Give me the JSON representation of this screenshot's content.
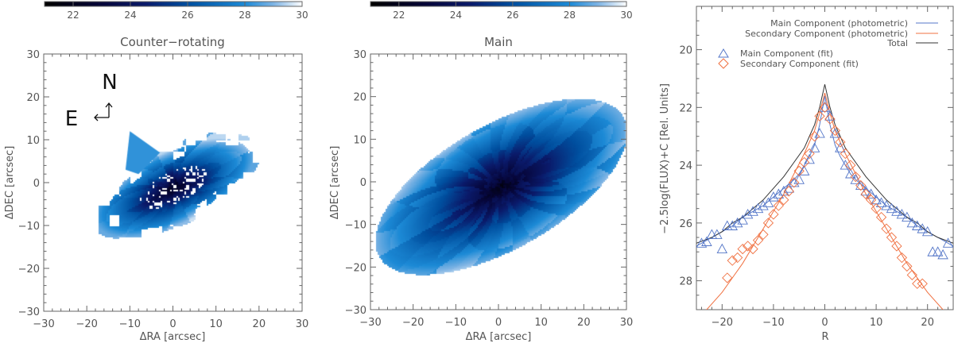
{
  "chart_data": [
    {
      "type": "heatmap",
      "title": "Counter−rotating",
      "xlabel": "ΔRA [arcsec]",
      "ylabel": "ΔDEC [arcsec]",
      "xlim": [
        -30,
        30
      ],
      "ylim": [
        -30,
        30
      ],
      "xticks": [
        "−30",
        "−20",
        "−10",
        "0",
        "10",
        "20",
        "30"
      ],
      "yticks": [
        "−30",
        "−20",
        "−10",
        "0",
        "10",
        "20",
        "30"
      ],
      "colorbar": {
        "range": [
          21,
          30
        ],
        "ticks": [
          "22",
          "24",
          "26",
          "28",
          "30"
        ],
        "colors": [
          "#000000",
          "#06063a",
          "#0a1a6a",
          "#004f9f",
          "#1c8ad6",
          "#7fb4e4",
          "#ffffff"
        ]
      },
      "compass": {
        "north": "N",
        "east": "E"
      }
    },
    {
      "type": "heatmap",
      "title": "Main",
      "xlabel": "ΔRA [arcsec]",
      "ylabel": "ΔDEC [arcsec]",
      "xlim": [
        -30,
        30
      ],
      "ylim": [
        -30,
        30
      ],
      "xticks": [
        "−30",
        "−20",
        "−10",
        "0",
        "10",
        "20",
        "30"
      ],
      "yticks": [
        "−30",
        "−20",
        "−10",
        "0",
        "10",
        "20",
        "30"
      ],
      "colorbar": {
        "range": [
          21,
          30
        ],
        "ticks": [
          "22",
          "24",
          "26",
          "28",
          "30"
        ]
      }
    },
    {
      "type": "line",
      "xlabel": "R",
      "ylabel": "−2.5log(FLUX)+C [Rel. Units]",
      "xlim": [
        -25,
        25
      ],
      "ylim": [
        29,
        18.5
      ],
      "xticks": [
        "−20",
        "−10",
        "0",
        "10",
        "20"
      ],
      "yticks": [
        "20",
        "22",
        "24",
        "26",
        "28"
      ],
      "colors": {
        "main": "#5577c8",
        "secondary": "#f07040",
        "total": "#333333"
      },
      "lines": [
        {
          "name": "Main Component (photometric)",
          "color": "#5577c8",
          "x": [
            -25,
            -22,
            -20,
            -18,
            -16,
            -14,
            -12,
            -10,
            -8,
            -6,
            -5,
            -4,
            -3,
            -2,
            -1,
            0,
            1,
            2,
            3,
            4,
            5,
            6,
            8,
            10,
            12,
            14,
            16,
            18,
            20,
            22,
            25
          ],
          "y": [
            26.8,
            26.5,
            26.3,
            26.1,
            25.8,
            25.6,
            25.4,
            25.1,
            24.8,
            24.5,
            24.3,
            24.0,
            23.7,
            23.3,
            22.6,
            21.6,
            22.6,
            23.3,
            23.7,
            24.0,
            24.3,
            24.5,
            24.8,
            25.1,
            25.4,
            25.6,
            25.8,
            26.1,
            26.3,
            26.5,
            26.8
          ]
        },
        {
          "name": "Secondary Component (photometric)",
          "color": "#f07040",
          "x": [
            -25,
            -23,
            -20,
            -18,
            -16,
            -14,
            -12,
            -10,
            -8,
            -6,
            -4,
            -3,
            -2,
            -1,
            0,
            1,
            2,
            3,
            4,
            6,
            8,
            10,
            12,
            14,
            16,
            18,
            20,
            23,
            25
          ],
          "y": [
            29.4,
            29.0,
            28.4,
            27.9,
            27.4,
            26.8,
            26.2,
            25.6,
            25.0,
            24.3,
            23.6,
            23.2,
            22.8,
            22.2,
            21.5,
            22.2,
            22.8,
            23.2,
            23.6,
            24.3,
            25.0,
            25.6,
            26.2,
            26.8,
            27.4,
            27.9,
            28.4,
            29.0,
            29.4
          ]
        },
        {
          "name": "Total",
          "color": "#333333",
          "x": [
            -25,
            -22,
            -20,
            -18,
            -16,
            -14,
            -12,
            -10,
            -8,
            -6,
            -4,
            -3,
            -2,
            -1,
            0,
            1,
            2,
            3,
            4,
            6,
            8,
            10,
            12,
            14,
            16,
            18,
            20,
            22,
            25
          ],
          "y": [
            26.7,
            26.5,
            26.3,
            26.0,
            25.8,
            25.5,
            25.2,
            24.8,
            24.4,
            23.9,
            23.4,
            23.0,
            22.6,
            22.0,
            21.2,
            22.0,
            22.6,
            23.0,
            23.4,
            23.9,
            24.4,
            24.8,
            25.2,
            25.5,
            25.8,
            26.0,
            26.3,
            26.5,
            26.7
          ]
        }
      ],
      "scatter": [
        {
          "name": "Main Component (fit)",
          "marker": "triangle",
          "color": "#5577c8",
          "x": [
            -24,
            -23,
            -22,
            -21,
            -20,
            -19,
            -18,
            -17,
            -16,
            -15,
            -14,
            -13,
            -12,
            -11,
            -10,
            -9,
            -8,
            -7,
            -6,
            -5,
            -4,
            -3,
            -2,
            -1,
            0,
            1,
            2,
            3,
            4,
            5,
            6,
            7,
            8,
            9,
            10,
            11,
            12,
            13,
            14,
            15,
            16,
            17,
            18,
            19,
            20,
            21,
            22,
            23,
            24
          ],
          "y": [
            26.7,
            26.65,
            26.4,
            26.4,
            26.9,
            26.1,
            26.1,
            26.0,
            25.9,
            25.7,
            25.6,
            25.5,
            25.4,
            25.3,
            25.1,
            25.0,
            24.9,
            24.8,
            24.6,
            24.5,
            24.2,
            23.8,
            23.4,
            22.9,
            22.0,
            22.3,
            22.9,
            23.4,
            24.0,
            24.3,
            24.5,
            24.7,
            24.9,
            25.0,
            25.2,
            25.3,
            25.4,
            25.5,
            25.6,
            25.7,
            25.8,
            26.0,
            26.1,
            26.2,
            26.3,
            27.0,
            27.0,
            27.1,
            26.7
          ]
        },
        {
          "name": "Secondary Component (fit)",
          "marker": "diamond",
          "color": "#f07040",
          "x": [
            -19,
            -18,
            -17,
            -16,
            -15,
            -14,
            -13,
            -12,
            -11,
            -10,
            -9,
            -8,
            -7,
            -6,
            -5,
            -4,
            -3,
            -2,
            -1,
            0,
            1,
            2,
            3,
            4,
            5,
            6,
            7,
            8,
            9,
            10,
            11,
            12,
            13,
            14,
            15,
            16,
            17,
            18,
            19
          ],
          "y": [
            27.9,
            27.3,
            27.2,
            26.9,
            26.8,
            26.9,
            26.6,
            26.4,
            26.0,
            25.7,
            25.4,
            25.2,
            24.9,
            24.6,
            24.2,
            23.9,
            23.6,
            23.0,
            22.3,
            22.0,
            22.4,
            22.8,
            23.2,
            23.6,
            24.0,
            24.4,
            24.7,
            25.0,
            25.2,
            25.5,
            25.8,
            26.2,
            26.5,
            26.8,
            27.2,
            27.5,
            27.8,
            28.1,
            28.1
          ]
        }
      ],
      "legend": {
        "placement": "top",
        "entries": [
          "Main Component (photometric)",
          "Secondary Component (photometric)",
          "Total",
          "Main Component (fit)",
          "Secondary Component (fit)"
        ]
      }
    }
  ]
}
